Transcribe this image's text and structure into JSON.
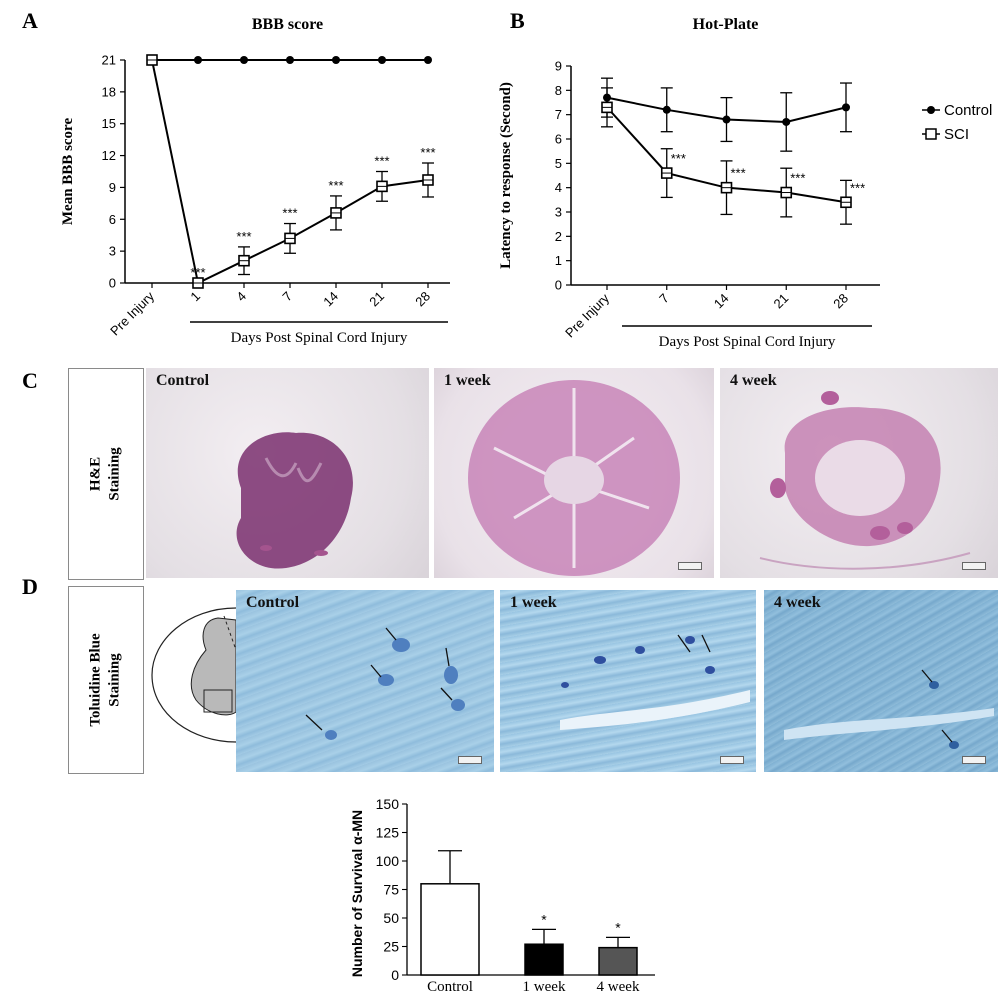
{
  "panels": {
    "a": "A",
    "b": "B",
    "c": "C",
    "d": "D"
  },
  "staining": {
    "he": [
      "H&E",
      "Staining"
    ],
    "toluidine": [
      "Toluidine Blue",
      "Staining"
    ],
    "tile_titles": [
      "Control",
      "1 week",
      "4 week"
    ]
  },
  "significance": "***",
  "significance_single": "*",
  "colors": {
    "line": "#000000",
    "bar_control": "#ffffff",
    "bar_1week": "#000000",
    "bar_4week": "#555555"
  },
  "chart_data": [
    {
      "id": "bbb",
      "type": "line",
      "title": "BBB score",
      "ylabel": "Mean BBB score",
      "xlabel": "Days Post Spinal Cord Injury",
      "categories": [
        "Pre Injury",
        "1",
        "4",
        "7",
        "14",
        "21",
        "28"
      ],
      "ylim": [
        0,
        21
      ],
      "yticks": [
        0,
        3,
        6,
        9,
        12,
        15,
        18,
        21
      ],
      "series": [
        {
          "values": [
            21,
            21,
            21,
            21,
            21,
            21,
            21
          ],
          "marker": "filled-circle"
        },
        {
          "values": [
            21,
            0,
            2.1,
            4.2,
            6.6,
            9.1,
            9.7
          ],
          "errors": [
            0,
            0,
            1.3,
            1.4,
            1.6,
            1.4,
            1.6
          ],
          "marker": "open-square",
          "annotations": [
            "",
            "***",
            "***",
            "***",
            "***",
            "***",
            "***"
          ]
        }
      ]
    },
    {
      "id": "hotplate",
      "type": "line",
      "title": "Hot-Plate",
      "ylabel": "Latency to response (Second)",
      "xlabel": "Days Post Spinal Cord Injury",
      "categories": [
        "Pre Injury",
        "7",
        "14",
        "21",
        "28"
      ],
      "ylim": [
        0,
        9
      ],
      "yticks": [
        0,
        1,
        2,
        3,
        4,
        5,
        6,
        7,
        8,
        9
      ],
      "legend": "right",
      "series": [
        {
          "name": "Control",
          "values": [
            7.7,
            7.2,
            6.8,
            6.7,
            7.3
          ],
          "errors": [
            0.8,
            0.9,
            0.9,
            1.2,
            1.0
          ],
          "marker": "filled-circle"
        },
        {
          "name": "SCI",
          "values": [
            7.3,
            4.6,
            4.0,
            3.8,
            3.4
          ],
          "errors": [
            0.8,
            1.0,
            1.1,
            1.0,
            0.9
          ],
          "marker": "open-square",
          "annotations": [
            "",
            "***",
            "***",
            "***",
            "***"
          ]
        }
      ]
    },
    {
      "id": "survival",
      "type": "bar",
      "ylabel": "Number of Survival α-MN",
      "categories": [
        "Control",
        "1 week",
        "4 week"
      ],
      "values": [
        80,
        27,
        24
      ],
      "errors": [
        29,
        13,
        9
      ],
      "annotations": [
        "",
        "*",
        "*"
      ],
      "ylim": [
        0,
        150
      ],
      "yticks": [
        0,
        25,
        50,
        75,
        100,
        125,
        150
      ]
    }
  ]
}
